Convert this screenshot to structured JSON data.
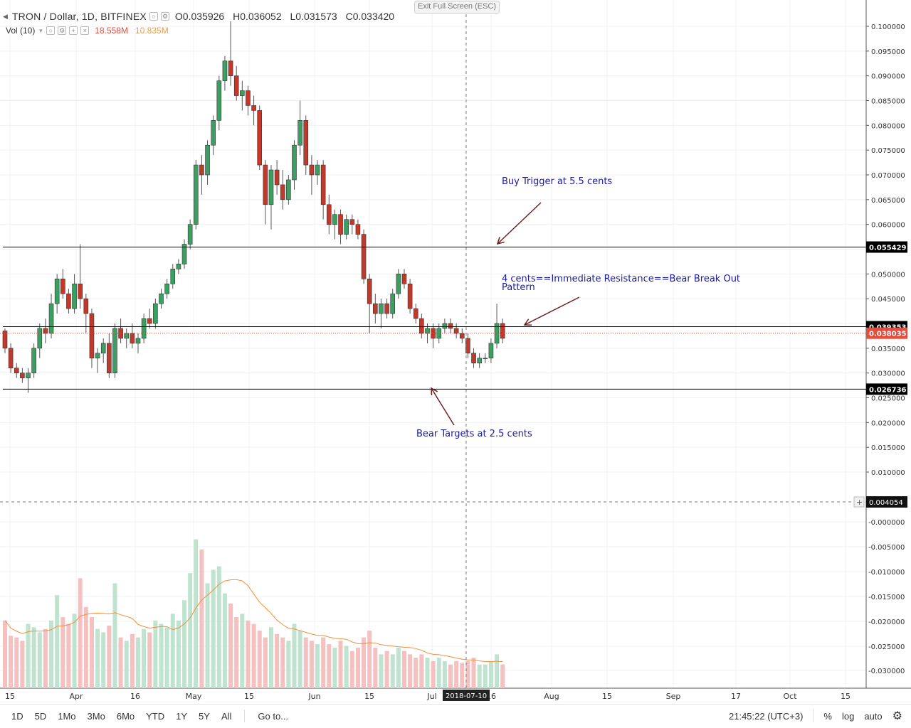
{
  "header": {
    "symbol": "TRON / Dollar, 1D, BITFINEX",
    "ohlc": {
      "open": "O0.035926",
      "high": "H0.036052",
      "low": "L0.031573",
      "close": "C0.033420"
    },
    "exit_fullscreen": "Exit Full Screen (ESC)"
  },
  "volume_indicator": {
    "label": "Vol (10)",
    "value_a": "18.558M",
    "value_b": "10.835M"
  },
  "price_axis": {
    "labels": [
      "0.100000",
      "0.095000",
      "0.090000",
      "0.085000",
      "0.080000",
      "0.075000",
      "0.070000",
      "0.065000",
      "0.060000",
      "0.050000",
      "0.045000",
      "0.035000",
      "0.030000",
      "0.025000",
      "0.020000",
      "0.015000",
      "0.010000"
    ],
    "volume_labels": [
      "-0.000000",
      "-0.005000",
      "-0.010000",
      "-0.015000",
      "-0.020000",
      "-0.025000",
      "-0.030000"
    ],
    "tags": [
      {
        "text": "0.055429",
        "value": 0.055429,
        "bg": "#000000"
      },
      {
        "text": "0.039353",
        "value": 0.039353,
        "bg": "#000000"
      },
      {
        "text": "0.038035",
        "value": 0.038035,
        "bg": "#e74c3c"
      },
      {
        "text": "0.026736",
        "value": 0.026736,
        "bg": "#000000"
      }
    ],
    "crosshair_tag": "0.004054"
  },
  "time_axis": {
    "labels": [
      "15",
      "Apr",
      "16",
      "May",
      "15",
      "Jun",
      "15",
      "Jul",
      "16",
      "Aug",
      "15",
      "Sep",
      "17",
      "Oct",
      "15"
    ],
    "crosshair_date": "2018-07-10"
  },
  "annotations": [
    {
      "id": "buy-trigger",
      "text": "Buy Trigger at 5.5 cents"
    },
    {
      "id": "resistance",
      "text": "4 cents==Immediate Resistance==Bear Break Out Pattern"
    },
    {
      "id": "bear-targets",
      "text": "Bear Targets at 2.5 cents"
    }
  ],
  "horizontal_lines": [
    {
      "value": 0.055429,
      "color": "#000000"
    },
    {
      "value": 0.039353,
      "color": "#000000"
    },
    {
      "value": 0.026736,
      "color": "#000000"
    }
  ],
  "colors": {
    "up": "#3c9f62",
    "down": "#c0392b",
    "up_vol": "#bfe3cf",
    "down_vol": "#f4c0c0",
    "ma": "#f0913a",
    "annot": "#1a1aa6",
    "arrow": "#6b1f1f"
  },
  "chart_data": {
    "type": "candlestick",
    "title": "TRON / Dollar, 1D, BITFINEX",
    "series": [
      {
        "name": "TRON / Dollar",
        "ohlc": [
          [
            0.0385,
            0.039,
            0.034,
            0.035
          ],
          [
            0.035,
            0.036,
            0.03,
            0.031
          ],
          [
            0.031,
            0.032,
            0.029,
            0.03
          ],
          [
            0.03,
            0.031,
            0.028,
            0.029
          ],
          [
            0.029,
            0.031,
            0.026,
            0.03
          ],
          [
            0.03,
            0.036,
            0.029,
            0.035
          ],
          [
            0.035,
            0.04,
            0.033,
            0.039
          ],
          [
            0.039,
            0.041,
            0.036,
            0.038
          ],
          [
            0.038,
            0.046,
            0.037,
            0.044
          ],
          [
            0.044,
            0.05,
            0.042,
            0.049
          ],
          [
            0.049,
            0.051,
            0.045,
            0.046
          ],
          [
            0.046,
            0.047,
            0.042,
            0.043
          ],
          [
            0.043,
            0.05,
            0.042,
            0.048
          ],
          [
            0.048,
            0.056,
            0.043,
            0.045
          ],
          [
            0.045,
            0.046,
            0.038,
            0.042
          ],
          [
            0.042,
            0.043,
            0.031,
            0.033
          ],
          [
            0.033,
            0.035,
            0.03,
            0.034
          ],
          [
            0.034,
            0.037,
            0.032,
            0.036
          ],
          [
            0.036,
            0.038,
            0.029,
            0.03
          ],
          [
            0.03,
            0.04,
            0.029,
            0.039
          ],
          [
            0.039,
            0.041,
            0.036,
            0.037
          ],
          [
            0.037,
            0.039,
            0.035,
            0.038
          ],
          [
            0.038,
            0.04,
            0.035,
            0.036
          ],
          [
            0.036,
            0.038,
            0.034,
            0.037
          ],
          [
            0.037,
            0.042,
            0.036,
            0.041
          ],
          [
            0.041,
            0.043,
            0.039,
            0.04
          ],
          [
            0.04,
            0.045,
            0.039,
            0.044
          ],
          [
            0.044,
            0.047,
            0.043,
            0.046
          ],
          [
            0.046,
            0.049,
            0.045,
            0.048
          ],
          [
            0.048,
            0.052,
            0.047,
            0.051
          ],
          [
            0.051,
            0.053,
            0.05,
            0.052
          ],
          [
            0.052,
            0.057,
            0.051,
            0.056
          ],
          [
            0.056,
            0.061,
            0.055,
            0.06
          ],
          [
            0.06,
            0.073,
            0.059,
            0.072
          ],
          [
            0.072,
            0.074,
            0.066,
            0.07
          ],
          [
            0.07,
            0.077,
            0.068,
            0.076
          ],
          [
            0.076,
            0.082,
            0.074,
            0.081
          ],
          [
            0.081,
            0.09,
            0.079,
            0.089
          ],
          [
            0.089,
            0.094,
            0.087,
            0.093
          ],
          [
            0.093,
            0.101,
            0.088,
            0.09
          ],
          [
            0.09,
            0.092,
            0.085,
            0.086
          ],
          [
            0.086,
            0.089,
            0.083,
            0.087
          ],
          [
            0.087,
            0.088,
            0.082,
            0.084
          ],
          [
            0.084,
            0.086,
            0.08,
            0.083
          ],
          [
            0.083,
            0.084,
            0.071,
            0.072
          ],
          [
            0.072,
            0.073,
            0.06,
            0.064
          ],
          [
            0.064,
            0.072,
            0.059,
            0.071
          ],
          [
            0.071,
            0.073,
            0.066,
            0.068
          ],
          [
            0.068,
            0.071,
            0.063,
            0.065
          ],
          [
            0.065,
            0.07,
            0.064,
            0.069
          ],
          [
            0.069,
            0.077,
            0.067,
            0.076
          ],
          [
            0.076,
            0.085,
            0.074,
            0.081
          ],
          [
            0.081,
            0.082,
            0.07,
            0.072
          ],
          [
            0.072,
            0.074,
            0.066,
            0.07
          ],
          [
            0.07,
            0.073,
            0.068,
            0.072
          ],
          [
            0.072,
            0.073,
            0.061,
            0.064
          ],
          [
            0.064,
            0.066,
            0.058,
            0.06
          ],
          [
            0.06,
            0.063,
            0.057,
            0.062
          ],
          [
            0.062,
            0.063,
            0.056,
            0.058
          ],
          [
            0.058,
            0.062,
            0.057,
            0.061
          ],
          [
            0.061,
            0.062,
            0.058,
            0.06
          ],
          [
            0.06,
            0.061,
            0.057,
            0.058
          ],
          [
            0.058,
            0.059,
            0.048,
            0.049
          ],
          [
            0.049,
            0.05,
            0.038,
            0.044
          ],
          [
            0.044,
            0.046,
            0.04,
            0.042
          ],
          [
            0.042,
            0.045,
            0.039,
            0.044
          ],
          [
            0.044,
            0.045,
            0.041,
            0.042
          ],
          [
            0.042,
            0.047,
            0.041,
            0.046
          ],
          [
            0.046,
            0.051,
            0.045,
            0.05
          ],
          [
            0.05,
            0.051,
            0.047,
            0.048
          ],
          [
            0.048,
            0.049,
            0.042,
            0.043
          ],
          [
            0.043,
            0.044,
            0.04,
            0.041
          ],
          [
            0.041,
            0.042,
            0.037,
            0.038
          ],
          [
            0.038,
            0.04,
            0.036,
            0.039
          ],
          [
            0.039,
            0.04,
            0.035,
            0.037
          ],
          [
            0.037,
            0.04,
            0.036,
            0.039
          ],
          [
            0.039,
            0.041,
            0.038,
            0.04
          ],
          [
            0.04,
            0.041,
            0.038,
            0.039
          ],
          [
            0.039,
            0.04,
            0.037,
            0.038
          ],
          [
            0.038,
            0.039,
            0.036,
            0.037
          ],
          [
            0.037,
            0.038,
            0.033,
            0.034
          ],
          [
            0.034,
            0.035,
            0.031,
            0.032
          ],
          [
            0.032,
            0.034,
            0.031,
            0.033
          ],
          [
            0.033,
            0.034,
            0.032,
            0.033
          ],
          [
            0.033,
            0.037,
            0.032,
            0.036
          ],
          [
            0.036,
            0.044,
            0.035,
            0.04
          ],
          [
            0.04,
            0.041,
            0.036,
            0.037
          ]
        ]
      },
      {
        "name": "Vol (10)",
        "values": [
          0.4,
          0.31,
          0.3,
          0.28,
          0.38,
          0.36,
          0.33,
          0.35,
          0.4,
          0.55,
          0.42,
          0.38,
          0.44,
          0.65,
          0.48,
          0.42,
          0.35,
          0.33,
          0.37,
          0.62,
          0.3,
          0.28,
          0.32,
          0.3,
          0.35,
          0.33,
          0.4,
          0.38,
          0.36,
          0.44,
          0.4,
          0.52,
          0.68,
          0.88,
          0.82,
          0.62,
          0.7,
          0.72,
          0.56,
          0.5,
          0.42,
          0.44,
          0.4,
          0.38,
          0.34,
          0.3,
          0.36,
          0.32,
          0.3,
          0.28,
          0.38,
          0.34,
          0.3,
          0.28,
          0.26,
          0.3,
          0.26,
          0.24,
          0.28,
          0.25,
          0.22,
          0.24,
          0.3,
          0.34,
          0.24,
          0.2,
          0.22,
          0.2,
          0.24,
          0.22,
          0.2,
          0.18,
          0.2,
          0.18,
          0.16,
          0.18,
          0.16,
          0.14,
          0.16,
          0.15,
          0.16,
          0.18,
          0.14,
          0.14,
          0.16,
          0.2,
          0.14
        ]
      }
    ],
    "ylim": [
      0.0,
      0.1
    ],
    "xlabel": "",
    "ylabel": ""
  },
  "toolbar": {
    "periods": [
      "1D",
      "5D",
      "1Mo",
      "3Mo",
      "6Mo",
      "YTD",
      "1Y",
      "5Y",
      "All"
    ],
    "goto": "Go to...",
    "clock": "21:45:22 (UTC+3)",
    "percent": "%",
    "log": "log",
    "auto": "auto"
  }
}
